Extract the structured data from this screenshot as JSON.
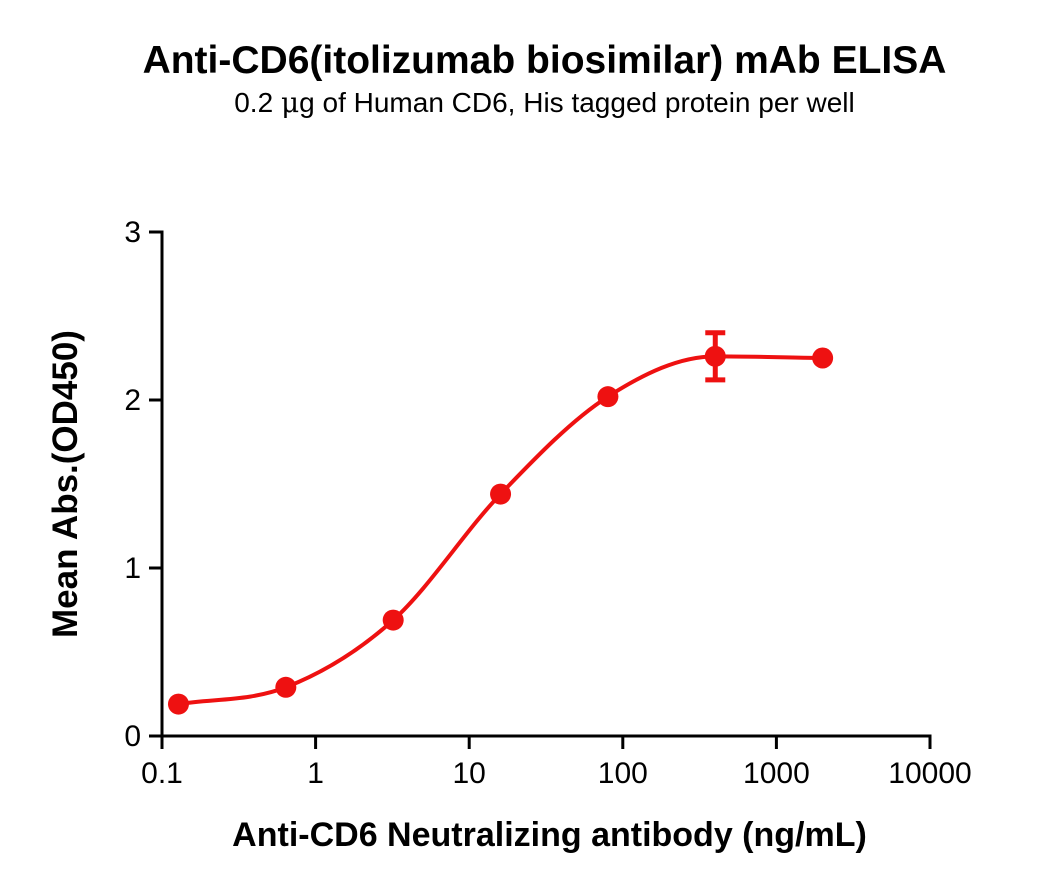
{
  "figure": {
    "background": "#FFFFFF",
    "text_color": "#000000",
    "axis_color": "#000000"
  },
  "chart_data": {
    "type": "scatter",
    "curve": "sigmoidal-dose-response-fit",
    "title": "Anti-CD6(itolizumab biosimilar) mAb ELISA",
    "subtitle": {
      "pre": "0.2 ",
      "mu": "μ",
      "post": "g of Human CD6, His tagged protein per well"
    },
    "xlabel": "Anti-CD6 Neutralizing antibody (ng/mL)",
    "ylabel": "Mean Abs.(OD450)",
    "x_scale": "log10",
    "xlim": [
      0.1,
      10000
    ],
    "ylim": [
      0,
      3
    ],
    "x_ticks": [
      {
        "v": 0.1,
        "label": "0.1"
      },
      {
        "v": 1,
        "label": "1"
      },
      {
        "v": 10,
        "label": "10"
      },
      {
        "v": 100,
        "label": "100"
      },
      {
        "v": 1000,
        "label": "1000"
      },
      {
        "v": 10000,
        "label": "10000"
      }
    ],
    "y_ticks": [
      {
        "v": 0,
        "label": "0"
      },
      {
        "v": 1,
        "label": "1"
      },
      {
        "v": 2,
        "label": "2"
      },
      {
        "v": 3,
        "label": "3"
      }
    ],
    "grid": false,
    "legend": false,
    "series": [
      {
        "color": "#EE1111",
        "marker": "circle",
        "points": [
          {
            "x": 0.128,
            "y": 0.19,
            "err": 0
          },
          {
            "x": 0.64,
            "y": 0.29,
            "err": 0
          },
          {
            "x": 3.2,
            "y": 0.69,
            "err": 0
          },
          {
            "x": 16,
            "y": 1.44,
            "err": 0
          },
          {
            "x": 80,
            "y": 2.02,
            "err": 0
          },
          {
            "x": 400,
            "y": 2.26,
            "err": 0.14
          },
          {
            "x": 2000,
            "y": 2.25,
            "err": 0
          }
        ]
      }
    ]
  }
}
